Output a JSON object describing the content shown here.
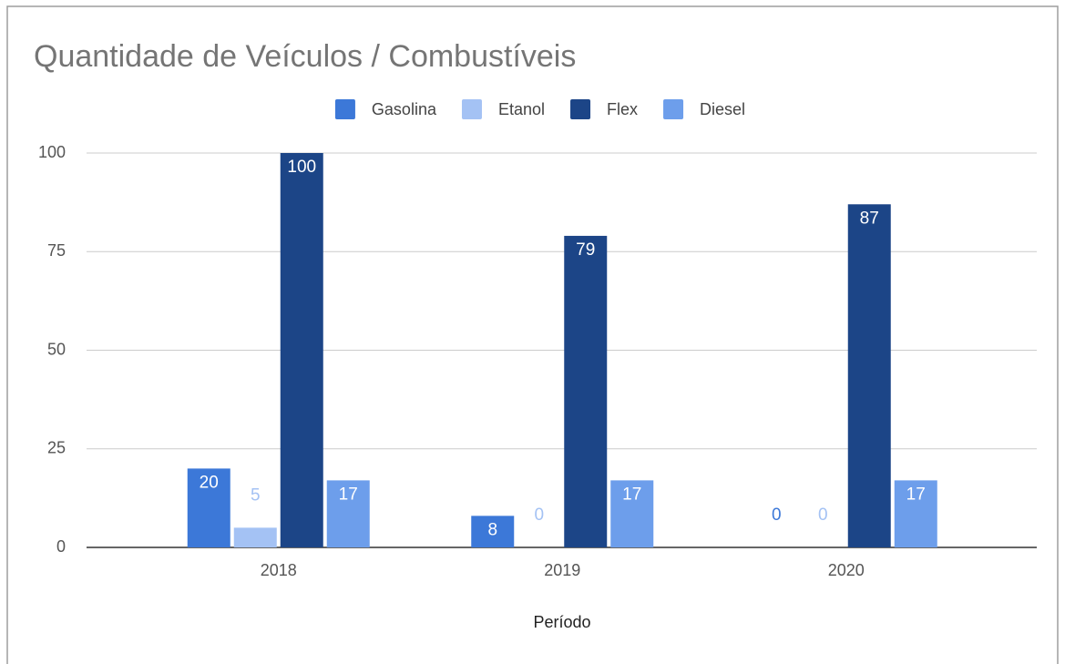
{
  "chart_data": {
    "type": "bar",
    "title": "Quantidade de Veículos / Combustíveis",
    "x_label": "Período",
    "categories": [
      "2018",
      "2019",
      "2020"
    ],
    "series": [
      {
        "name": "Gasolina",
        "color": "#3c78d8",
        "values": [
          20,
          8,
          0
        ]
      },
      {
        "name": "Etanol",
        "color": "#a4c2f4",
        "values": [
          5,
          0,
          0
        ]
      },
      {
        "name": "Flex",
        "color": "#1c4587",
        "values": [
          100,
          79,
          87
        ]
      },
      {
        "name": "Diesel",
        "color": "#6d9eeb",
        "values": [
          17,
          17,
          17
        ]
      }
    ],
    "ylim": [
      0,
      100
    ],
    "yticks": [
      0,
      25,
      50,
      75,
      100
    ],
    "grid": true,
    "legend": "top"
  }
}
